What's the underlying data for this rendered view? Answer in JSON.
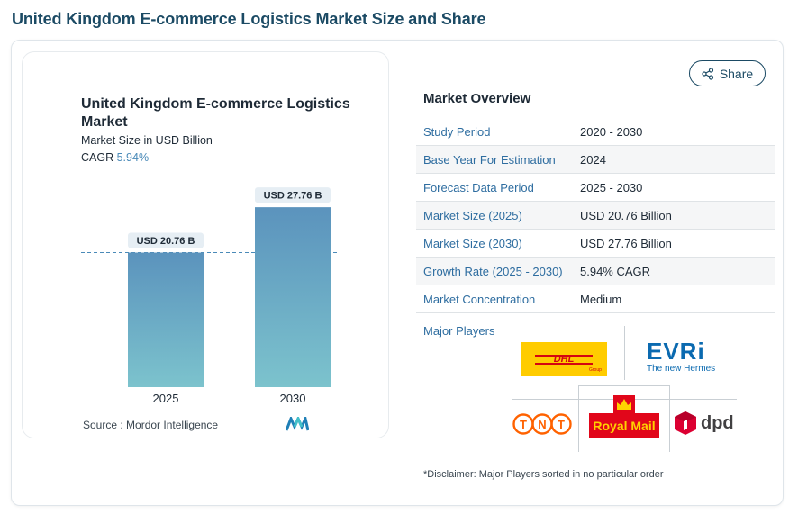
{
  "page": {
    "title": "United Kingdom E-commerce Logistics Market Size and Share"
  },
  "chart": {
    "title": "United Kingdom E-commerce Logistics Market",
    "subtitle": "Market Size in USD Billion",
    "cagr_label": "CAGR",
    "cagr_value": "5.94%",
    "source_label": "Source :",
    "source_value": "Mordor Intelligence"
  },
  "chart_data": {
    "type": "bar",
    "categories": [
      "2025",
      "2030"
    ],
    "values": [
      20.76,
      27.76
    ],
    "data_labels": [
      "USD 20.76 B",
      "USD 27.76 B"
    ],
    "title": "United Kingdom E-commerce Logistics Market",
    "subtitle": "Market Size in USD Billion",
    "grid": false,
    "reference_line_at": 20.76
  },
  "share": {
    "label": "Share"
  },
  "overview": {
    "title": "Market Overview",
    "rows": [
      {
        "key": "Study Period",
        "value": "2020 - 2030"
      },
      {
        "key": "Base Year For Estimation",
        "value": "2024"
      },
      {
        "key": "Forecast Data Period",
        "value": "2025 - 2030"
      },
      {
        "key": "Market Size (2025)",
        "value": "USD 20.76 Billion"
      },
      {
        "key": "Market Size (2030)",
        "value": "USD 27.76 Billion"
      },
      {
        "key": "Growth Rate (2025 - 2030)",
        "value": "5.94% CAGR"
      },
      {
        "key": "Market Concentration",
        "value": "Medium"
      }
    ]
  },
  "players": {
    "label": "Major Players",
    "logos": {
      "dhl": {
        "text": "DHL",
        "sub": "Group",
        "bg": "#ffcc00",
        "fg": "#d40511"
      },
      "evri": {
        "text": "EVRi",
        "sub": "The new Hermes",
        "fg": "#0b6ab0"
      },
      "tnt": {
        "text": "TNT",
        "fg": "#ff6200"
      },
      "royalmail": {
        "text": "Royal Mail",
        "bg": "#e1061a",
        "fg": "#ffd200"
      },
      "dpd": {
        "text": "dpd",
        "fg": "#dc0032"
      }
    }
  },
  "disclaimer": "*Disclaimer: Major Players sorted in no particular order",
  "colors": {
    "accent": "#1b4a64",
    "link": "#2e6da0",
    "bar_top": "#5b93bd",
    "bar_bottom": "#7cc3cd"
  }
}
